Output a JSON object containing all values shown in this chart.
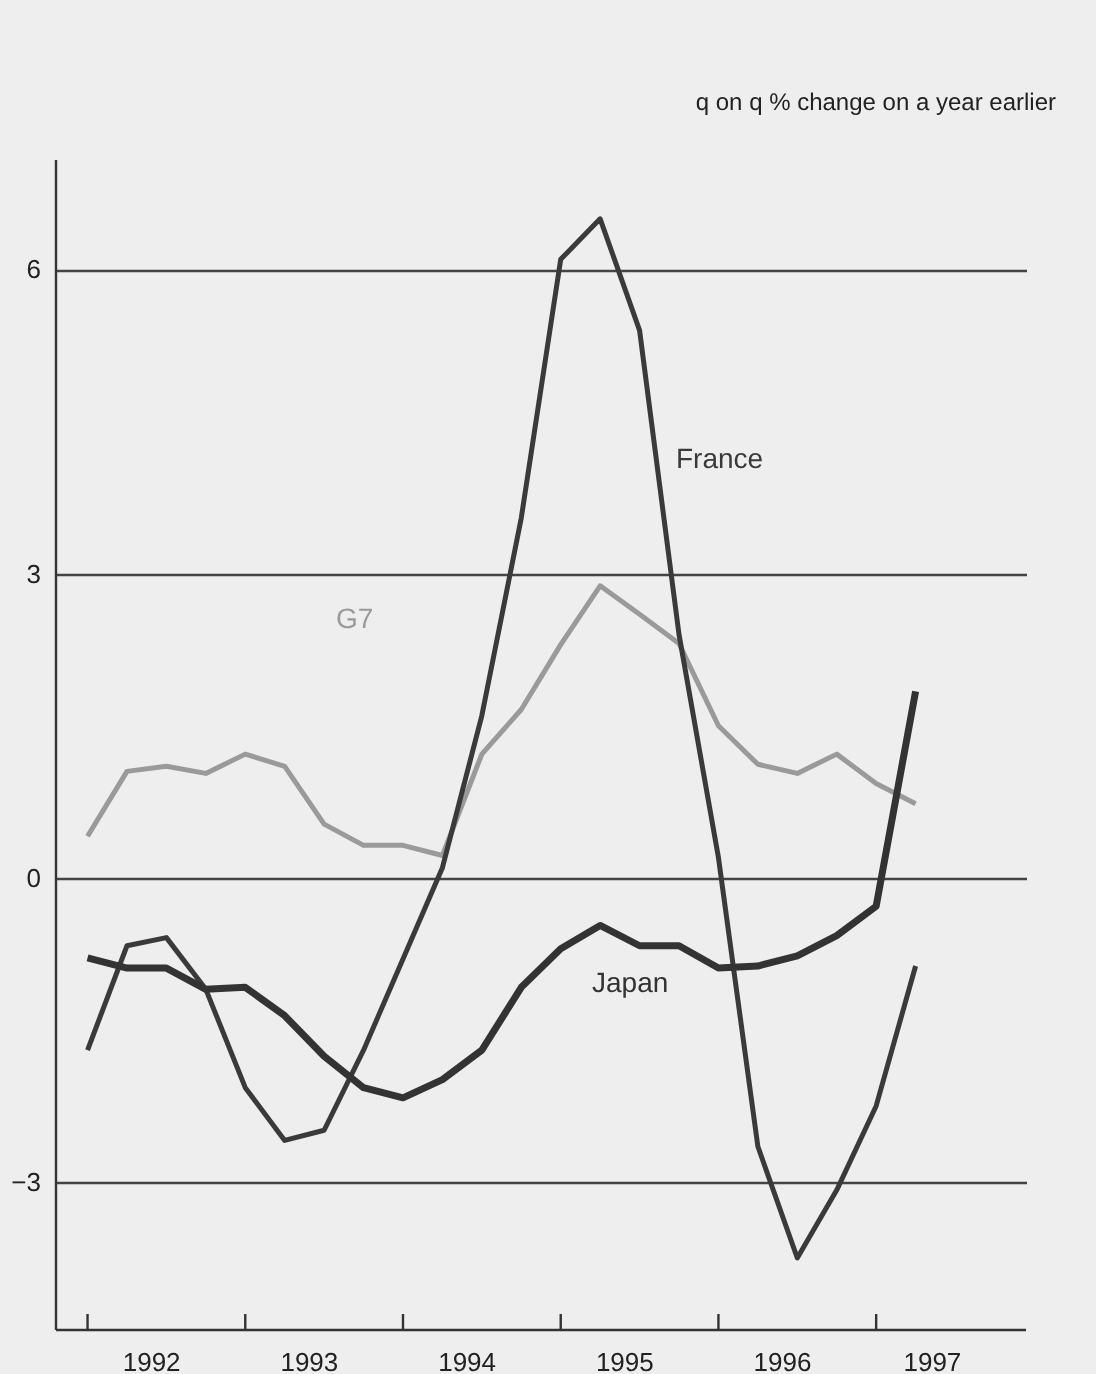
{
  "chart_data": {
    "type": "line",
    "ylabel": "q on q % change on a year earlier",
    "x": [
      1992.0,
      1992.25,
      1992.5,
      1992.75,
      1993.0,
      1993.25,
      1993.5,
      1993.75,
      1994.0,
      1994.25,
      1994.5,
      1994.75,
      1995.0,
      1995.25,
      1995.5,
      1995.75,
      1996.0,
      1996.25,
      1996.5,
      1996.75,
      1997.0,
      1997.25
    ],
    "series": [
      {
        "name": "G7",
        "color": "#9a9a9a",
        "values": [
          0.41,
          1.05,
          1.1,
          1.03,
          1.22,
          1.1,
          0.53,
          0.32,
          0.32,
          0.22,
          1.22,
          1.66,
          2.3,
          2.88,
          2.6,
          2.31,
          1.5,
          1.12,
          1.03,
          1.22,
          0.93,
          0.73
        ]
      },
      {
        "name": "France",
        "color": "#3a3a3a",
        "values": [
          -1.7,
          -0.67,
          -0.59,
          -1.1,
          -2.07,
          -2.59,
          -2.49,
          -1.7,
          -0.8,
          0.1,
          1.6,
          3.55,
          6.1,
          6.5,
          5.4,
          2.4,
          0.2,
          -2.65,
          -3.75,
          -3.08,
          -2.25,
          -0.87
        ]
      },
      {
        "name": "Japan",
        "color": "#333333",
        "values": [
          -0.79,
          -0.89,
          -0.89,
          -1.1,
          -1.08,
          -1.36,
          -1.76,
          -2.07,
          -2.17,
          -1.99,
          -1.7,
          -1.08,
          -0.7,
          -0.47,
          -0.67,
          -0.67,
          -0.89,
          -0.87,
          -0.77,
          -0.57,
          -0.28,
          1.84
        ]
      }
    ],
    "xlim": [
      1991.8,
      1997.95
    ],
    "xticks": [
      {
        "value": 1992,
        "label": null
      },
      {
        "value": 1993,
        "label": null
      },
      {
        "value": 1994,
        "label": null
      },
      {
        "value": 1995,
        "label": null
      },
      {
        "value": 1996,
        "label": null
      },
      {
        "value": 1997,
        "label": null
      },
      {
        "value": 1992.4,
        "label": "1992"
      },
      {
        "value": 1993.4,
        "label": "1993"
      },
      {
        "value": 1994.4,
        "label": "1994"
      },
      {
        "value": 1995.4,
        "label": "1995"
      },
      {
        "value": 1996.4,
        "label": "1996"
      },
      {
        "value": 1997.35,
        "label": "1997"
      }
    ],
    "ylim": [
      -4.46,
      7.08
    ],
    "yticks": [
      -3,
      0,
      3,
      6
    ],
    "grid": "y",
    "marker": "none",
    "line_style": "solid"
  }
}
